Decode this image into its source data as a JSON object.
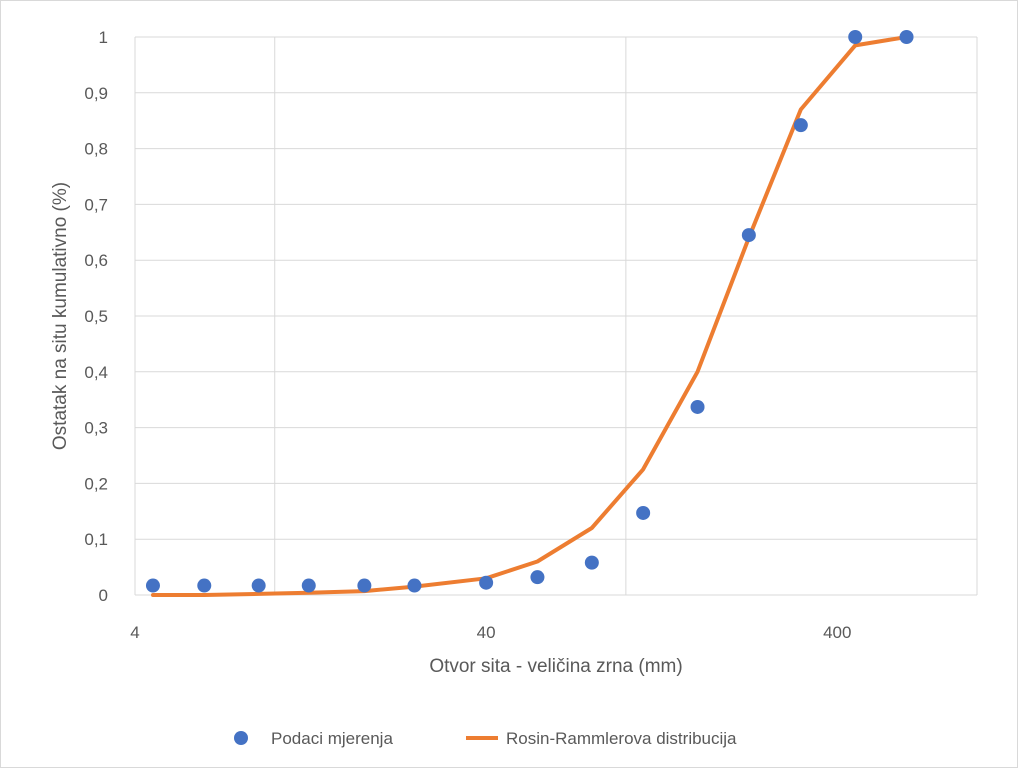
{
  "chart_data": {
    "type": "scatter",
    "title": "",
    "xlabel": "Otvor sita - veličina zrna (mm)",
    "ylabel": "Ostatak na situ  kumulativno (%)",
    "x_scale": "log",
    "xlim": [
      4,
      1000
    ],
    "ylim": [
      0,
      1
    ],
    "x_ticks": [
      4,
      40,
      400
    ],
    "x_tick_labels": [
      "4",
      "40",
      "400"
    ],
    "y_ticks": [
      0,
      0.1,
      0.2,
      0.3,
      0.4,
      0.5,
      0.6,
      0.7,
      0.8,
      0.9,
      1
    ],
    "y_tick_labels": [
      "0",
      "0,1",
      "0,2",
      "0,3",
      "0,4",
      "0,5",
      "0,6",
      "0,7",
      "0,8",
      "0,9",
      "1"
    ],
    "grid": true,
    "legend_position": "bottom",
    "series": [
      {
        "name": "Podaci mjerenja",
        "type": "scatter",
        "color": "#4472c4",
        "x": [
          4.5,
          6.3,
          9,
          12.5,
          18,
          25,
          40,
          56,
          80,
          112,
          160,
          224,
          315,
          450,
          630
        ],
        "y": [
          0.017,
          0.017,
          0.017,
          0.017,
          0.017,
          0.017,
          0.022,
          0.032,
          0.058,
          0.147,
          0.337,
          0.645,
          0.842,
          1.0,
          1.0
        ]
      },
      {
        "name": "Rosin-Rammlerova distribucija",
        "type": "line",
        "color": "#ed7d31",
        "x": [
          4.5,
          6.3,
          9,
          12.5,
          18,
          25,
          40,
          56,
          80,
          112,
          160,
          224,
          315,
          450,
          630
        ],
        "y": [
          0.0,
          0.0,
          0.002,
          0.004,
          0.007,
          0.015,
          0.03,
          0.06,
          0.12,
          0.225,
          0.4,
          0.64,
          0.87,
          0.985,
          1.0
        ]
      }
    ]
  }
}
